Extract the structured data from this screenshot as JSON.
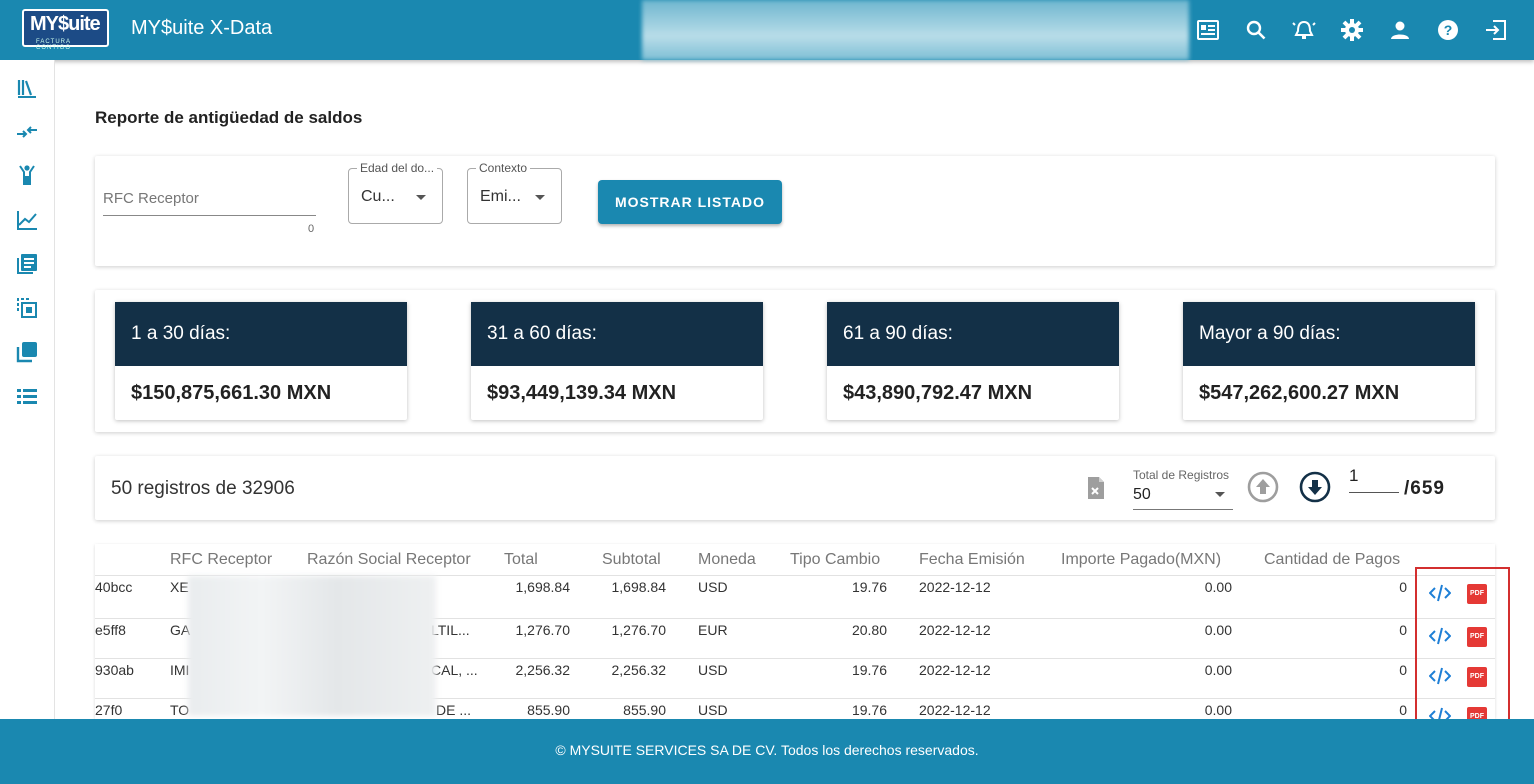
{
  "header": {
    "logo_text": "MY$uite",
    "logo_tagline": "FACTURA CONTIGO",
    "app_title": "MY$uite X-Data",
    "icons": [
      "news-icon",
      "search-icon",
      "alarm-icon",
      "gear-icon",
      "user-icon",
      "help-icon",
      "logout-icon"
    ]
  },
  "sidebar": {
    "icons": [
      "library-icon",
      "compare-arrows-icon",
      "person-icon",
      "chart-line-icon",
      "document-list-icon",
      "select-copy-icon",
      "stacked-pages-icon",
      "list-icon"
    ]
  },
  "page": {
    "title": "Reporte de antigüedad de saldos"
  },
  "filters": {
    "rfc_placeholder": "RFC Receptor",
    "rfc_count": "0",
    "edad_label": "Edad del do...",
    "edad_value": "Cu...",
    "contexto_label": "Contexto",
    "contexto_value": "Emi...",
    "show_button": "MOSTRAR LISTADO"
  },
  "buckets": [
    {
      "label": "1 a 30 días:",
      "amount": "$150,875,661.30 MXN"
    },
    {
      "label": "31 a 60 días:",
      "amount": "$93,449,139.34 MXN"
    },
    {
      "label": "61 a 90 días:",
      "amount": "$43,890,792.47 MXN"
    },
    {
      "label": "Mayor a 90 días:",
      "amount": "$547,262,600.27 MXN"
    }
  ],
  "pager": {
    "count_text": "50 registros de 32906",
    "total_label": "Total de Registros",
    "total_value": "50",
    "page_current": "1",
    "page_total": "/659"
  },
  "table": {
    "headers": [
      "RFC Receptor",
      "Razón Social Receptor",
      "Total",
      "Subtotal",
      "Moneda",
      "Tipo Cambio",
      "Fecha Emisión",
      "Importe Pagado(MXN)",
      "Cantidad de Pagos"
    ],
    "rows": [
      {
        "id": "40bcc",
        "rfc": "XE",
        "razon": "",
        "total": "1,698.84",
        "subtotal": "1,698.84",
        "moneda": "USD",
        "tipo": "19.76",
        "fecha": "2022-12-12",
        "importe": "0.00",
        "cantidad": "0"
      },
      {
        "id": "e5ff8",
        "rfc": "GA",
        "razon": "LTIL...",
        "total": "1,276.70",
        "subtotal": "1,276.70",
        "moneda": "EUR",
        "tipo": "20.80",
        "fecha": "2022-12-12",
        "importe": "0.00",
        "cantidad": "0"
      },
      {
        "id": "930ab",
        "rfc": "IMI",
        "razon": "CAL, ...",
        "total": "2,256.32",
        "subtotal": "2,256.32",
        "moneda": "USD",
        "tipo": "19.76",
        "fecha": "2022-12-12",
        "importe": "0.00",
        "cantidad": "0"
      },
      {
        "id": "27f0",
        "rfc": "TO",
        "razon": "DE ...",
        "total": "855.90",
        "subtotal": "855.90",
        "moneda": "USD",
        "tipo": "19.76",
        "fecha": "2022-12-12",
        "importe": "0.00",
        "cantidad": "0"
      }
    ],
    "pdf_label": "PDF"
  },
  "footer": {
    "text": "© MYSUITE SERVICES SA DE CV. Todos los derechos reservados."
  },
  "colors": {
    "primary": "#1a88b0",
    "dark": "#133047",
    "danger": "#e53935"
  }
}
